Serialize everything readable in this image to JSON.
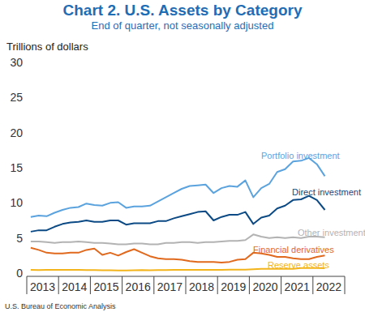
{
  "chart_data": {
    "type": "line",
    "title": "Chart 2. U.S. Assets by Category",
    "subtitle": "End of quarter, not seasonally adjusted",
    "y_label": "Trillions of dollars",
    "source": "U.S. Bureau of Economic Analysis",
    "categories": [
      null,
      "2013",
      null,
      null,
      null,
      "2014",
      null,
      null,
      null,
      "2015",
      null,
      null,
      null,
      "2016",
      null,
      null,
      null,
      "2017",
      null,
      null,
      null,
      "2018",
      null,
      null,
      null,
      "2019",
      null,
      null,
      null,
      "2020",
      null,
      null,
      null,
      "2021",
      null,
      null,
      null,
      "2022"
    ],
    "series": [
      {
        "name": "Portfolio investment",
        "color": "#5ba3de",
        "values": [
          8.0,
          8.2,
          8.1,
          8.6,
          9.0,
          9.3,
          9.4,
          9.9,
          9.7,
          9.6,
          10.0,
          10.1,
          9.3,
          9.5,
          9.5,
          9.6,
          10.2,
          10.8,
          11.4,
          12.0,
          12.4,
          12.5,
          12.6,
          11.4,
          12.1,
          12.4,
          12.3,
          13.2,
          10.8,
          12.1,
          12.7,
          14.4,
          14.8,
          15.9,
          16.0,
          16.4,
          15.5,
          13.8
        ]
      },
      {
        "name": "Direct investment",
        "color": "#0b4a85",
        "values": [
          5.9,
          6.1,
          6.1,
          6.6,
          7.0,
          7.2,
          7.3,
          7.5,
          7.3,
          7.3,
          7.5,
          7.5,
          6.9,
          7.1,
          7.1,
          7.1,
          7.4,
          7.4,
          7.8,
          8.1,
          8.4,
          8.7,
          8.8,
          7.5,
          8.0,
          8.3,
          8.3,
          8.7,
          7.0,
          7.9,
          8.2,
          9.2,
          9.6,
          10.4,
          10.5,
          11.0,
          10.4,
          9.0
        ]
      },
      {
        "name": "Other investment",
        "color": "#b3b3b3",
        "values": [
          4.5,
          4.5,
          4.4,
          4.3,
          4.4,
          4.4,
          4.5,
          4.4,
          4.3,
          4.3,
          4.2,
          4.1,
          4.1,
          4.2,
          4.2,
          4.1,
          4.1,
          4.3,
          4.3,
          4.4,
          4.4,
          4.3,
          4.4,
          4.4,
          4.5,
          4.6,
          4.6,
          4.7,
          5.5,
          5.2,
          5.0,
          5.1,
          5.0,
          5.1,
          5.0,
          5.2,
          5.2,
          5.1
        ]
      },
      {
        "name": "Financial derivatives",
        "color": "#e0691e",
        "values": [
          3.6,
          3.3,
          2.9,
          2.8,
          2.8,
          2.9,
          2.9,
          3.3,
          3.5,
          2.6,
          2.9,
          2.5,
          3.0,
          3.4,
          2.9,
          2.4,
          2.1,
          2.0,
          2.0,
          1.9,
          1.7,
          1.6,
          1.6,
          1.6,
          1.5,
          1.6,
          1.9,
          2.0,
          2.9,
          2.8,
          2.6,
          2.3,
          2.3,
          2.1,
          2.0,
          2.0,
          2.3,
          2.5
        ]
      },
      {
        "name": "Reserve assets",
        "color": "#f2b41a",
        "values": [
          0.45,
          0.42,
          0.45,
          0.45,
          0.45,
          0.45,
          0.45,
          0.43,
          0.42,
          0.4,
          0.4,
          0.38,
          0.38,
          0.4,
          0.42,
          0.4,
          0.42,
          0.43,
          0.45,
          0.45,
          0.45,
          0.45,
          0.45,
          0.45,
          0.47,
          0.48,
          0.5,
          0.5,
          0.55,
          0.6,
          0.62,
          0.62,
          0.6,
          0.62,
          0.72,
          0.72,
          0.72,
          0.7
        ]
      }
    ],
    "ylim": [
      0,
      30
    ],
    "yticks": [
      0,
      5,
      10,
      15,
      20,
      25,
      30
    ],
    "grid": false
  }
}
